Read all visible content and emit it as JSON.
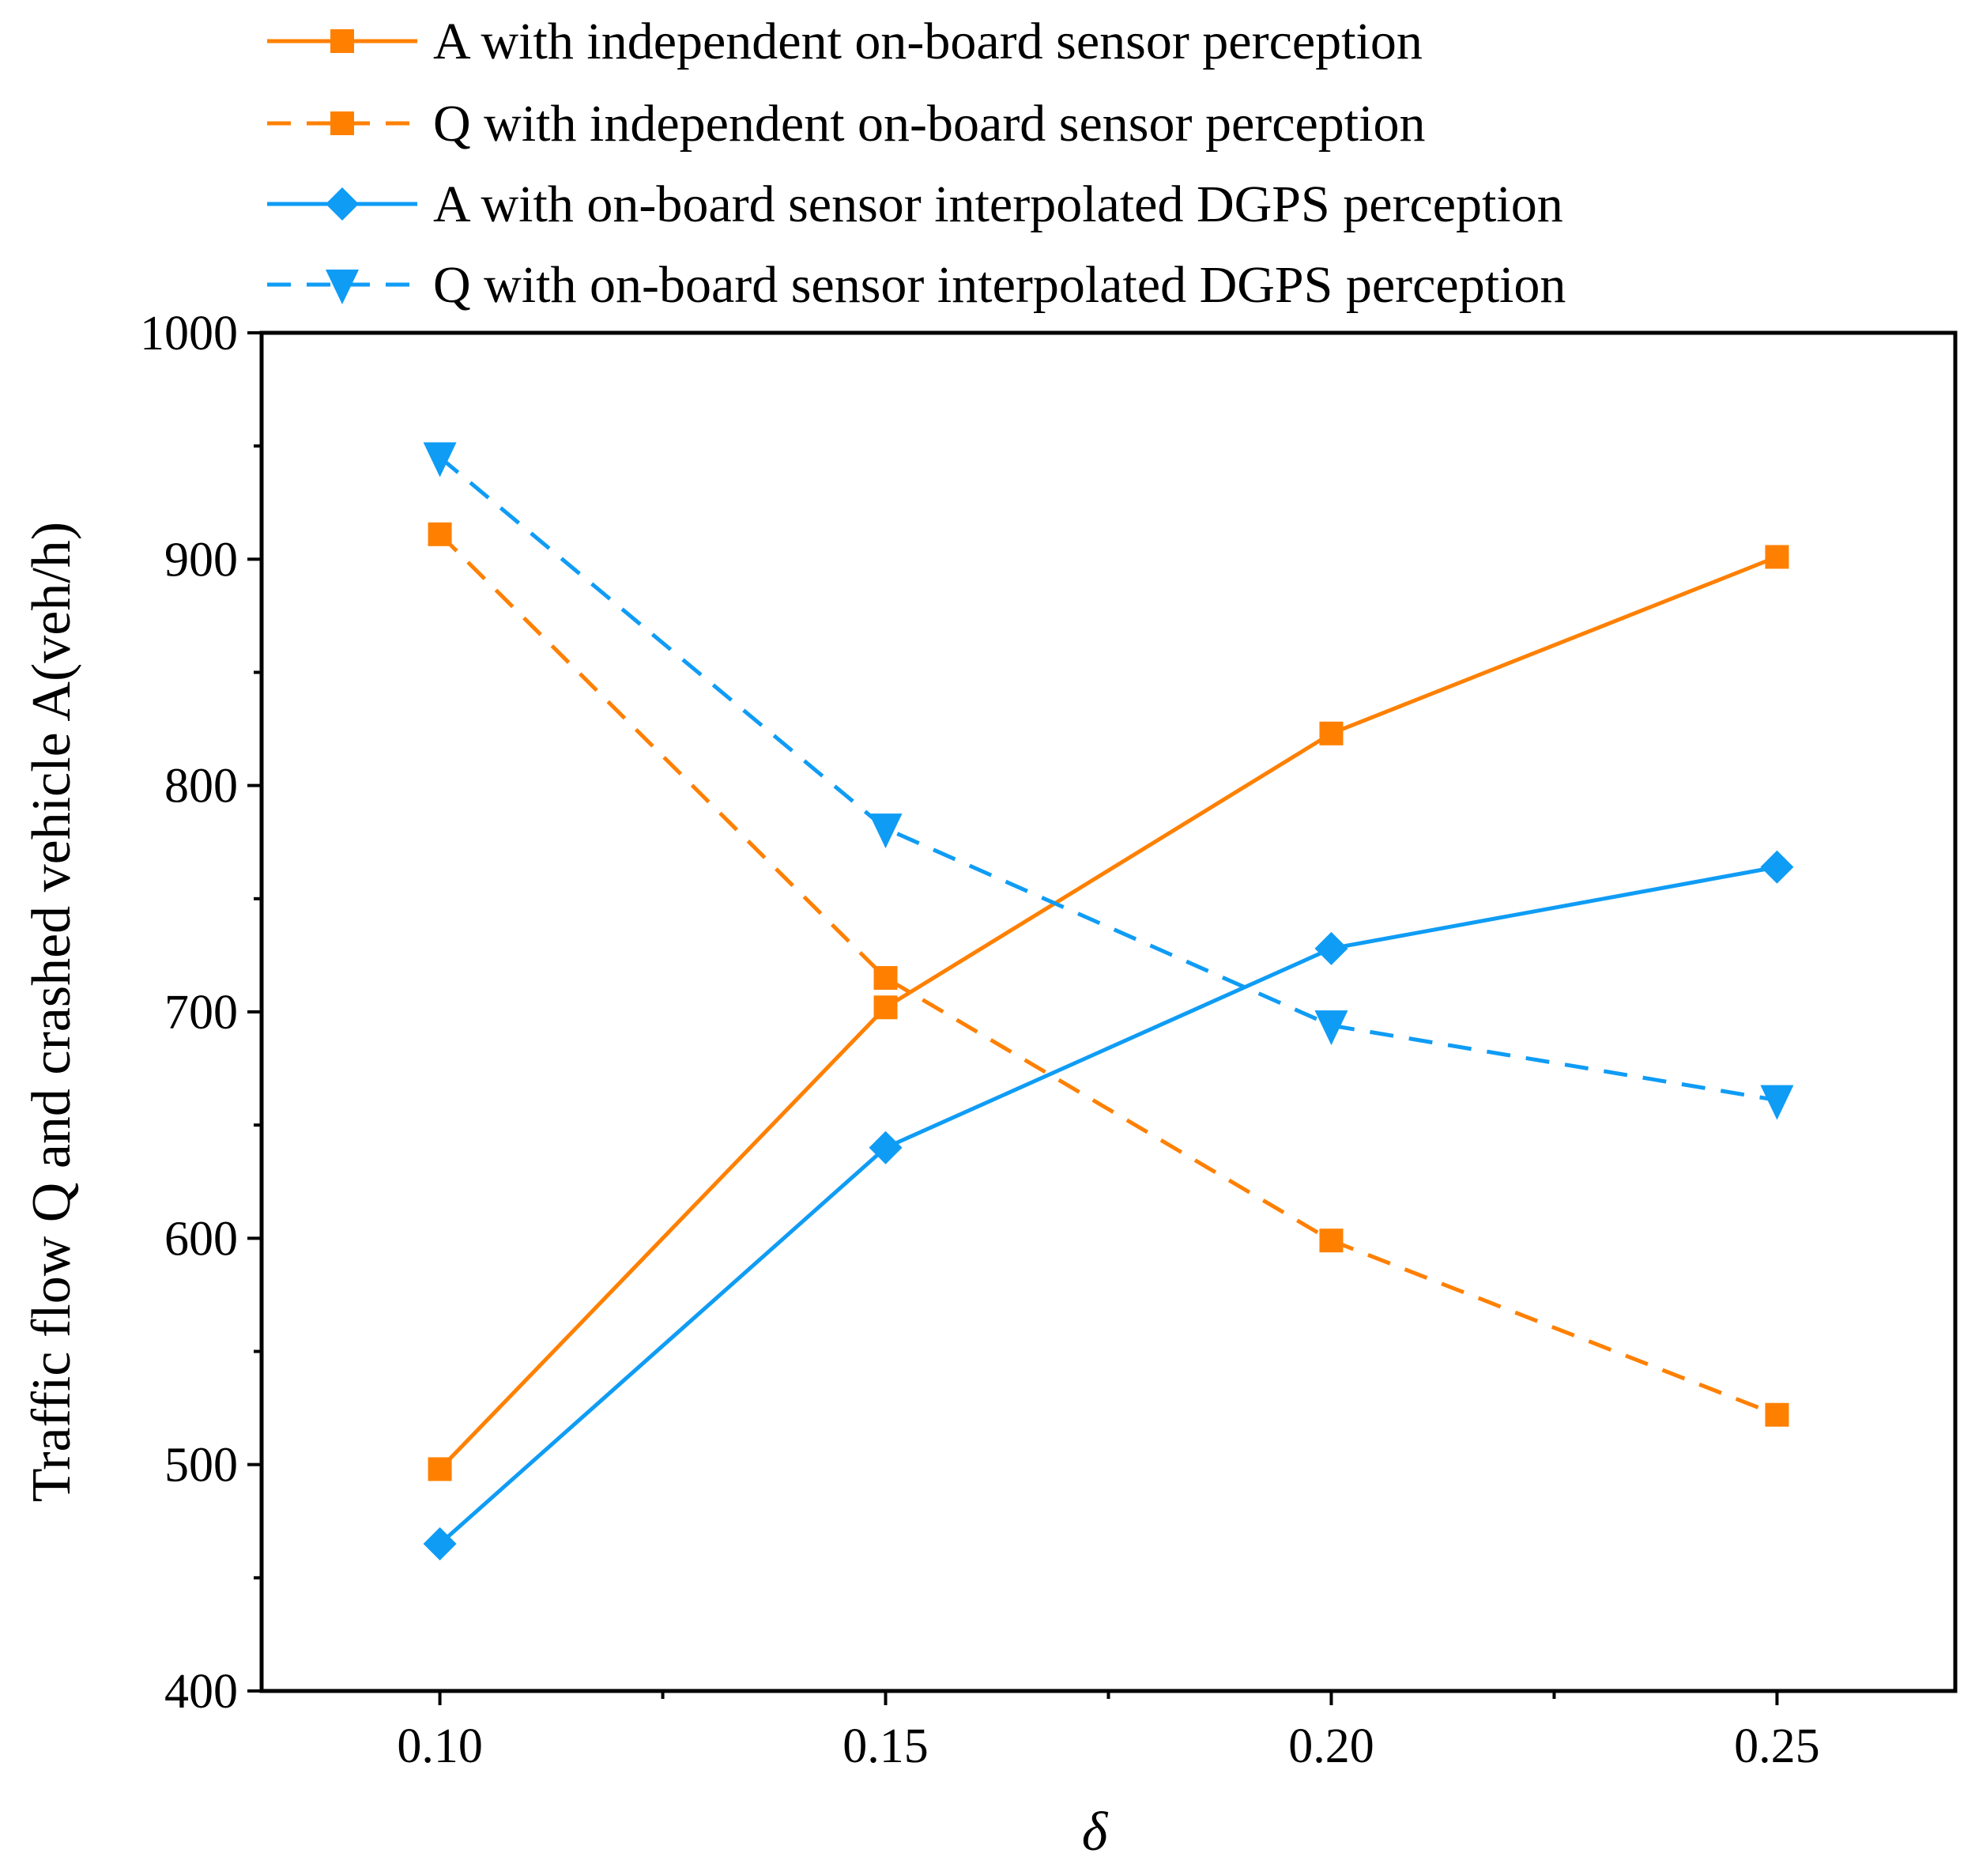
{
  "chart_data": {
    "type": "line",
    "title": "",
    "xlabel": "δ",
    "ylabel": "Traffic flow Q and crashed vehicle A(veh/h)",
    "xlim": [
      0.08,
      0.27
    ],
    "ylim": [
      400,
      1000
    ],
    "xticks": [
      0.1,
      0.15,
      0.2,
      0.25
    ],
    "xtick_labels": [
      "0.10",
      "0.15",
      "0.20",
      "0.25"
    ],
    "yticks": [
      400,
      500,
      600,
      700,
      800,
      900,
      1000
    ],
    "ytick_labels": [
      "400",
      "500",
      "600",
      "700",
      "800",
      "900",
      "1000"
    ],
    "grid": false,
    "legend_position": "top",
    "x": [
      0.1,
      0.15,
      0.2,
      0.25
    ],
    "series": [
      {
        "name": "A with independent on-board sensor perception",
        "values": [
          498,
          702,
          823,
          901
        ],
        "color": "#ff8000",
        "dash": "solid",
        "marker": "square"
      },
      {
        "name": "Q with independent on-board sensor perception",
        "values": [
          911,
          715,
          599,
          522
        ],
        "color": "#ff8000",
        "dash": "dashed",
        "marker": "square"
      },
      {
        "name": "A with on-board sensor interpolated DGPS perception",
        "values": [
          465,
          640,
          728,
          764
        ],
        "color": "#0f9cf5",
        "dash": "solid",
        "marker": "diamond"
      },
      {
        "name": "Q with on-board sensor interpolated DGPS perception",
        "values": [
          945,
          781,
          694,
          661
        ],
        "color": "#0f9cf5",
        "dash": "dashed",
        "marker": "triangle-down"
      }
    ]
  }
}
